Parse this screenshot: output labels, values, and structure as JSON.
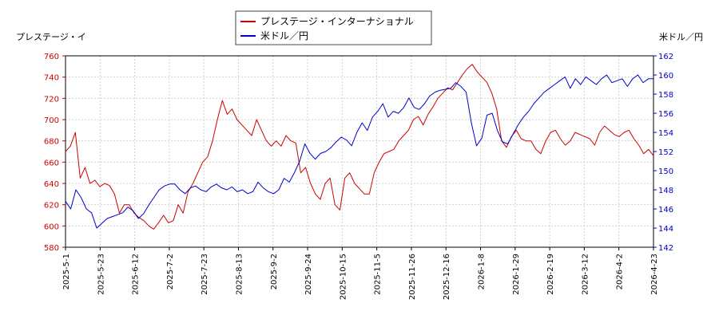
{
  "chart_data": {
    "type": "line",
    "legend_position": "top-center",
    "grid": true,
    "left_axis": {
      "title": "プレステージ・イ",
      "range": [
        580,
        760
      ],
      "ticks": [
        "580",
        "600",
        "620",
        "640",
        "660",
        "680",
        "700",
        "720",
        "740",
        "760"
      ],
      "color": "#cc0000"
    },
    "right_axis": {
      "title": "米ドル／円",
      "range": [
        142,
        162
      ],
      "ticks": [
        "142",
        "144",
        "146",
        "148",
        "150",
        "152",
        "154",
        "156",
        "158",
        "160",
        "162"
      ],
      "color": "#0000cc"
    },
    "x_tick_labels": [
      "2025-5-1",
      "2025-5-23",
      "2025-6-12",
      "2025-7-2",
      "2025-7-23",
      "2025-8-13",
      "2025-9-2",
      "2025-9-24",
      "2025-10-15",
      "2025-11-5",
      "2025-11-26",
      "2025-12-16",
      "2026-1-8",
      "2026-1-29",
      "2026-2-19",
      "2026-3-12",
      "2026-4-2",
      "2026-4-23"
    ],
    "series": [
      {
        "name": "プレステージ・インターナショナル",
        "axis": "left",
        "color": "#cc0000",
        "values": [
          670,
          675,
          688,
          645,
          655,
          640,
          643,
          637,
          640,
          638,
          630,
          612,
          620,
          620,
          612,
          608,
          605,
          600,
          597,
          603,
          610,
          603,
          605,
          620,
          612,
          632,
          640,
          650,
          660,
          665,
          680,
          700,
          718,
          705,
          710,
          700,
          695,
          690,
          685,
          700,
          690,
          680,
          675,
          680,
          675,
          685,
          680,
          678,
          650,
          655,
          640,
          630,
          625,
          640,
          645,
          620,
          615,
          645,
          650,
          640,
          635,
          630,
          630,
          650,
          660,
          668,
          670,
          672,
          680,
          685,
          690,
          700,
          703,
          695,
          705,
          712,
          720,
          725,
          730,
          728,
          735,
          742,
          748,
          752,
          745,
          740,
          735,
          725,
          710,
          680,
          674,
          684,
          690,
          682,
          680,
          680,
          672,
          668,
          680,
          688,
          690,
          682,
          676,
          680,
          688,
          686,
          684,
          682,
          676,
          688,
          694,
          690,
          686,
          684,
          688,
          690,
          682,
          676,
          668,
          672,
          666
        ]
      },
      {
        "name": "米ドル／円",
        "axis": "right",
        "color": "#0000cc",
        "values": [
          146.8,
          146.0,
          148.0,
          147.2,
          146.0,
          145.6,
          144.0,
          144.5,
          145.0,
          145.2,
          145.4,
          145.6,
          146.2,
          145.8,
          145.0,
          145.5,
          146.4,
          147.2,
          148.0,
          148.4,
          148.6,
          148.6,
          148.0,
          147.6,
          148.2,
          148.4,
          148.0,
          147.8,
          148.3,
          148.6,
          148.2,
          148.0,
          148.3,
          147.8,
          148.0,
          147.6,
          147.8,
          148.8,
          148.2,
          147.8,
          147.6,
          148.0,
          149.2,
          148.8,
          149.8,
          151.0,
          152.8,
          151.8,
          151.2,
          151.8,
          152.0,
          152.4,
          153.0,
          153.5,
          153.2,
          152.6,
          154.0,
          155.0,
          154.2,
          155.6,
          156.2,
          157.0,
          155.6,
          156.2,
          156.0,
          156.6,
          157.6,
          156.6,
          156.4,
          157.0,
          157.8,
          158.2,
          158.4,
          158.5,
          158.6,
          159.2,
          158.8,
          158.2,
          155.0,
          152.6,
          153.4,
          155.8,
          156.0,
          154.2,
          153.0,
          152.8,
          153.8,
          154.8,
          155.6,
          156.2,
          157.0,
          157.6,
          158.2,
          158.6,
          159.0,
          159.4,
          159.8,
          158.6,
          159.6,
          159.0,
          159.8,
          159.4,
          159.0,
          159.6,
          160.0,
          159.2,
          159.4,
          159.6,
          158.8,
          159.6,
          160.0,
          159.2,
          159.6,
          159.6
        ]
      }
    ]
  }
}
